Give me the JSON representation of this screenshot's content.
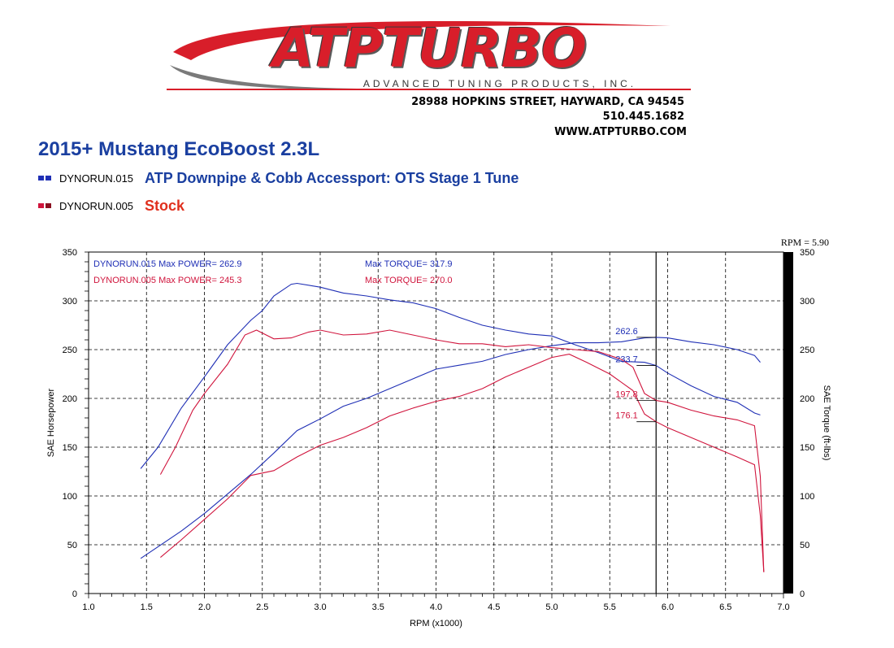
{
  "header": {
    "logo_text": "ATPTURBO",
    "logo_subtitle": "ADVANCED TUNING PRODUCTS, INC.",
    "address": "28988 HOPKINS STREET, HAYWARD, CA 94545",
    "phone": "510.445.1682",
    "website": "WWW.ATPTURBO.COM"
  },
  "colors": {
    "blue": "#1f2fb5",
    "red": "#d0143c",
    "title": "#1a3fa0",
    "stock": "#e0301e"
  },
  "legend": [
    {
      "run": "DYNORUN.015",
      "description": "ATP Downpipe & Cobb Accessport: OTS Stage 1 Tune"
    },
    {
      "run": "DYNORUN.005",
      "description": "Stock"
    }
  ],
  "chart_data": {
    "type": "line",
    "title": "2015+ Mustang EcoBoost 2.3L",
    "xlabel": "RPM (x1000)",
    "ylabel": "SAE Horsepower",
    "ylabel_right": "SAE Torque (ft-lbs)",
    "xlim": [
      1.0,
      7.0
    ],
    "ylim": [
      0,
      350
    ],
    "x_ticks": [
      "1.0",
      "1.5",
      "2.0",
      "2.5",
      "3.0",
      "3.5",
      "4.0",
      "4.5",
      "5.0",
      "5.5",
      "6.0",
      "6.5",
      "7.0"
    ],
    "y_ticks": [
      "0",
      "50",
      "100",
      "150",
      "200",
      "250",
      "300",
      "350"
    ],
    "grid": true,
    "cursor": {
      "label": "RPM = 5.90",
      "x": 5.9
    },
    "summary": [
      {
        "text": "DYNORUN.015  Max POWER= 262.9",
        "torque_text": "Max TORQUE= 317.9",
        "color": "blue"
      },
      {
        "text": "DYNORUN.005  Max POWER= 245.3",
        "torque_text": "Max TORQUE= 270.0",
        "color": "red"
      }
    ],
    "cursor_labels": [
      {
        "text": "262.6",
        "x": 5.9,
        "y": 262.6,
        "color": "blue"
      },
      {
        "text": "233.7",
        "x": 5.9,
        "y": 233.7,
        "color": "blue"
      },
      {
        "text": "197.8",
        "x": 5.9,
        "y": 197.8,
        "color": "red"
      },
      {
        "text": "176.1",
        "x": 5.9,
        "y": 176.1,
        "color": "red"
      }
    ],
    "series": [
      {
        "name": "DYNORUN.015 Torque",
        "color": "blue",
        "x": [
          1.45,
          1.6,
          1.8,
          2.0,
          2.2,
          2.4,
          2.5,
          2.6,
          2.75,
          2.8,
          3.0,
          3.2,
          3.4,
          3.6,
          3.8,
          4.0,
          4.2,
          4.4,
          4.6,
          4.8,
          5.0,
          5.2,
          5.4,
          5.6,
          5.8,
          5.9,
          6.0,
          6.2,
          6.4,
          6.6,
          6.75,
          6.8
        ],
        "y": [
          128,
          150,
          190,
          222,
          255,
          280,
          290,
          305,
          317,
          317.9,
          314,
          308,
          305,
          301,
          298,
          292,
          283,
          275,
          270,
          266,
          264,
          255,
          247,
          238,
          237,
          233.7,
          226,
          213,
          202,
          196,
          185,
          183
        ]
      },
      {
        "name": "DYNORUN.015 Power",
        "color": "blue",
        "x": [
          1.45,
          1.6,
          1.8,
          2.0,
          2.2,
          2.4,
          2.6,
          2.8,
          3.0,
          3.2,
          3.4,
          3.6,
          3.8,
          4.0,
          4.2,
          4.4,
          4.6,
          4.8,
          5.0,
          5.2,
          5.4,
          5.6,
          5.8,
          5.9,
          6.0,
          6.2,
          6.4,
          6.6,
          6.75,
          6.8
        ],
        "y": [
          36,
          48,
          64,
          82,
          102,
          122,
          144,
          167,
          179,
          192,
          200,
          210,
          220,
          230,
          234,
          238,
          245,
          250,
          254,
          257,
          257,
          258,
          262,
          262.6,
          262,
          258,
          255,
          250,
          244,
          237
        ]
      },
      {
        "name": "DYNORUN.005 Torque",
        "color": "red",
        "x": [
          1.62,
          1.75,
          1.9,
          2.0,
          2.2,
          2.35,
          2.45,
          2.6,
          2.75,
          2.9,
          3.0,
          3.2,
          3.4,
          3.6,
          3.8,
          4.0,
          4.2,
          4.4,
          4.6,
          4.8,
          5.0,
          5.2,
          5.4,
          5.6,
          5.7,
          5.8,
          5.9,
          6.0,
          6.2,
          6.4,
          6.6,
          6.75,
          6.8,
          6.83
        ],
        "y": [
          122,
          150,
          188,
          205,
          235,
          265,
          270,
          261,
          262,
          268,
          270,
          265,
          266,
          270,
          265,
          260,
          256,
          256,
          253,
          255,
          252,
          250,
          248,
          240,
          232,
          205,
          197.8,
          196,
          188,
          182,
          178,
          172,
          120,
          22
        ]
      },
      {
        "name": "DYNORUN.005 Power",
        "color": "red",
        "x": [
          1.62,
          1.8,
          2.0,
          2.2,
          2.4,
          2.6,
          2.8,
          3.0,
          3.2,
          3.4,
          3.6,
          3.8,
          4.0,
          4.2,
          4.4,
          4.6,
          4.8,
          5.0,
          5.15,
          5.3,
          5.5,
          5.7,
          5.8,
          5.9,
          6.0,
          6.2,
          6.4,
          6.6,
          6.75,
          6.8,
          6.83
        ],
        "y": [
          37,
          55,
          76,
          97,
          121,
          126,
          140,
          152,
          160,
          170,
          182,
          190,
          197,
          202,
          210,
          222,
          232,
          242,
          245.3,
          237,
          225,
          208,
          184,
          176.1,
          170,
          160,
          150,
          140,
          132,
          80,
          22
        ]
      }
    ]
  }
}
